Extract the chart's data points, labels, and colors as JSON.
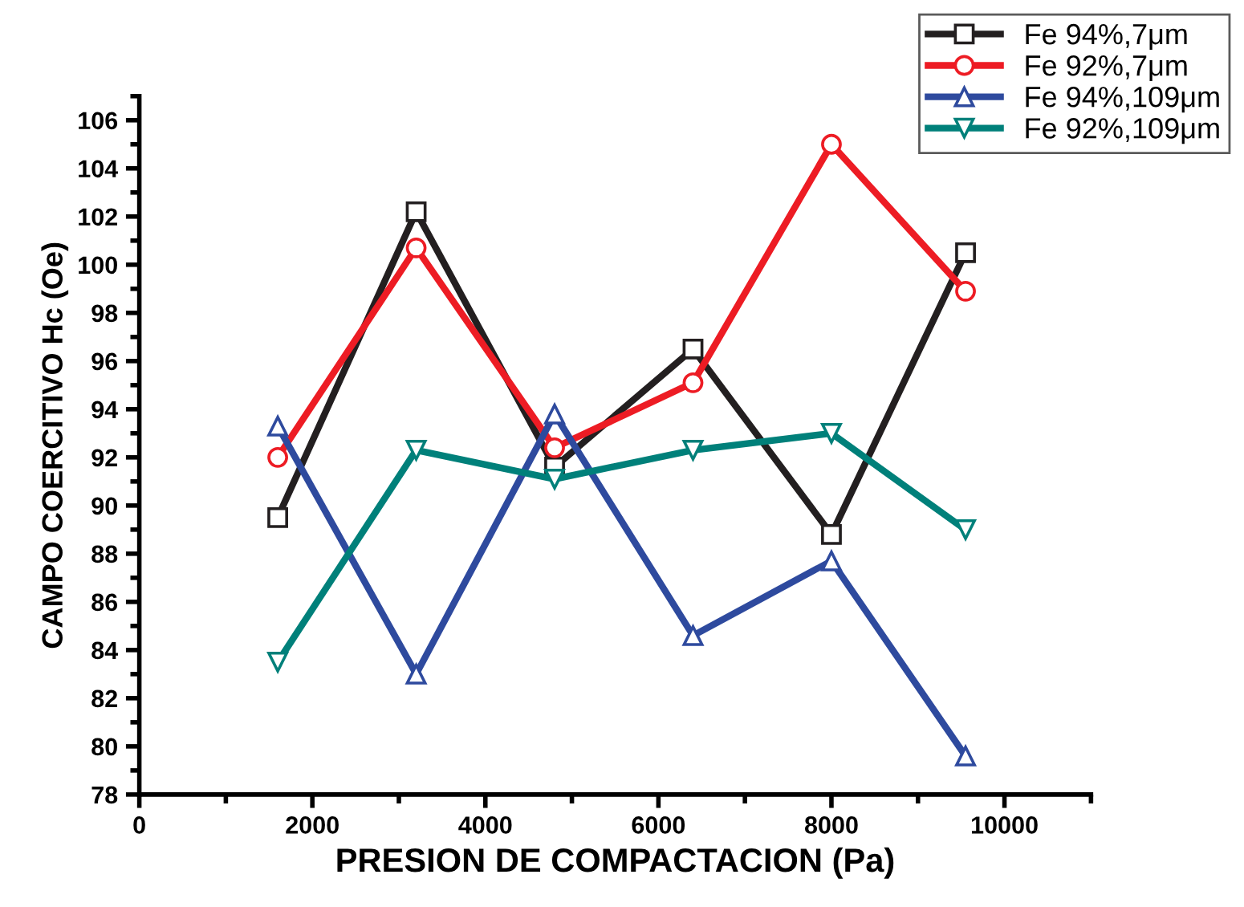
{
  "chart_data": {
    "type": "line",
    "xlabel": "PRESION DE COMPACTACION (Pa)",
    "ylabel": "CAMPO COERCITIVO Hc (Oe)",
    "x": [
      1600,
      3200,
      4800,
      6400,
      8000,
      9550
    ],
    "series": [
      {
        "name": "Fe 94%,7μm",
        "color": "#231f20",
        "marker": "square",
        "values": [
          89.5,
          102.2,
          91.6,
          96.5,
          88.8,
          100.5
        ]
      },
      {
        "name": "Fe 92%,7μm",
        "color": "#ed1c24",
        "marker": "circle",
        "values": [
          92.0,
          100.7,
          92.4,
          95.1,
          105.0,
          98.9
        ]
      },
      {
        "name": "Fe 94%,109μm",
        "color": "#2e4a9e",
        "marker": "triangle",
        "values": [
          93.3,
          83.0,
          93.8,
          84.6,
          87.7,
          79.6
        ]
      },
      {
        "name": "Fe 92%,109μm",
        "color": "#00807a",
        "marker": "triangle_down",
        "values": [
          83.5,
          92.3,
          91.1,
          92.3,
          93.0,
          89.0
        ]
      }
    ],
    "xlim": [
      0,
      11000
    ],
    "xticks": [
      0,
      2000,
      4000,
      6000,
      8000,
      10000
    ],
    "ylim": [
      78,
      107
    ],
    "yticks": [
      78,
      80,
      82,
      84,
      86,
      88,
      90,
      92,
      94,
      96,
      98,
      100,
      102,
      104,
      106
    ],
    "grid": false,
    "legend": "top right",
    "line_style": "solid"
  }
}
